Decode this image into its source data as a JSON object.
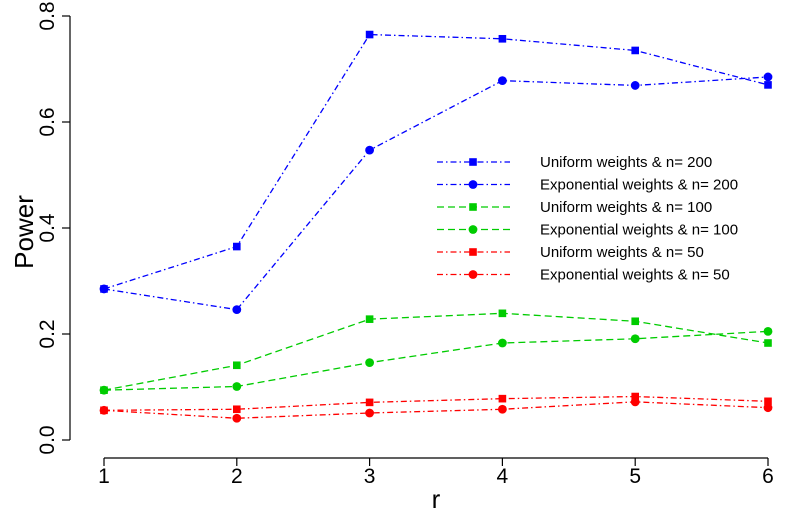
{
  "chart_data": {
    "type": "line",
    "title": "",
    "xlabel": "r",
    "ylabel": "Power",
    "x": [
      1,
      2,
      3,
      4,
      5,
      6
    ],
    "xticks": [
      "1",
      "2",
      "3",
      "4",
      "5",
      "6"
    ],
    "yticks": [
      "0.0",
      "0.2",
      "0.4",
      "0.6",
      "0.8"
    ],
    "xlim": [
      1,
      6
    ],
    "ylim": [
      0.0,
      0.8
    ],
    "grid": false,
    "legend_position": "right",
    "series": [
      {
        "name": "Uniform weights & n= 200",
        "color": "#0000ff",
        "marker": "square",
        "dash": "dotdash",
        "values": [
          0.285,
          0.365,
          0.765,
          0.757,
          0.735,
          0.67
        ]
      },
      {
        "name": "Exponential weights & n= 200",
        "color": "#0000ff",
        "marker": "circle",
        "dash": "dotdash",
        "values": [
          0.285,
          0.246,
          0.547,
          0.678,
          0.669,
          0.685
        ]
      },
      {
        "name": "Uniform weights & n= 100",
        "color": "#00cc00",
        "marker": "square",
        "dash": "dashed",
        "values": [
          0.094,
          0.141,
          0.228,
          0.239,
          0.224,
          0.183
        ]
      },
      {
        "name": "Exponential weights & n= 100",
        "color": "#00cc00",
        "marker": "circle",
        "dash": "dashed",
        "values": [
          0.094,
          0.101,
          0.146,
          0.183,
          0.191,
          0.205
        ]
      },
      {
        "name": "Uniform weights & n= 50",
        "color": "#ff0000",
        "marker": "square",
        "dash": "dotdash",
        "values": [
          0.056,
          0.058,
          0.071,
          0.078,
          0.082,
          0.073
        ]
      },
      {
        "name": "Exponential weights & n= 50",
        "color": "#ff0000",
        "marker": "circle",
        "dash": "dotdash",
        "values": [
          0.056,
          0.041,
          0.051,
          0.058,
          0.072,
          0.061
        ]
      }
    ]
  }
}
